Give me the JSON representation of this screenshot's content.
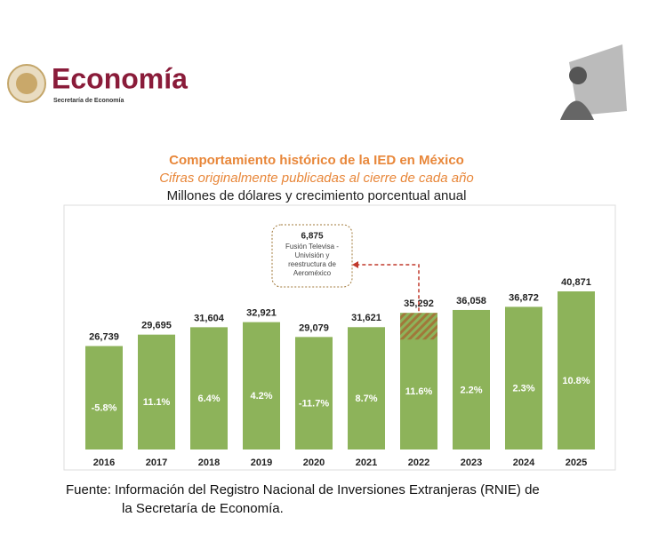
{
  "header": {
    "title": "Economía",
    "subtitle": "Secretaría de Economía"
  },
  "chart_data": {
    "type": "bar",
    "title": "Comportamiento histórico de la IED en México",
    "subtitle": "Cifras originalmente publicadas al cierre de cada año",
    "description": "Millones de dólares y crecimiento porcentual anual",
    "categories": [
      "2016",
      "2017",
      "2018",
      "2019",
      "2020",
      "2021",
      "2022",
      "2023",
      "2024",
      "2025"
    ],
    "values": [
      26739,
      29695,
      31604,
      32921,
      29079,
      31621,
      35292,
      36058,
      36872,
      40871
    ],
    "value_labels": [
      "26,739",
      "29,695",
      "31,604",
      "32,921",
      "29,079",
      "31,621",
      "35,292",
      "36,058",
      "36,872",
      "40,871"
    ],
    "color": "#8db35a",
    "growth": {
      "values": [
        -5.8,
        11.1,
        6.4,
        4.2,
        -11.7,
        8.7,
        11.6,
        2.2,
        2.3,
        10.8
      ],
      "value_labels": [
        "-5.8%",
        "11.1%",
        "6.4%",
        "4.2%",
        "-11.7%",
        "8.7%",
        "11.6%",
        "2.2%",
        "2.3%",
        "10.8%"
      ]
    },
    "annotation": {
      "category": "2022",
      "value": 6875,
      "value_label": "6,875",
      "lines": [
        "Fusión Televisa -",
        "Univisión y",
        "reestructura de",
        "Aeroméxico"
      ],
      "color": "#c0392b"
    }
  },
  "footer": {
    "lines": [
      "Fuente: Información del Registro Nacional de Inversiones Extranjeras (RNIE) de",
      "la Secretaría de Economía."
    ]
  }
}
